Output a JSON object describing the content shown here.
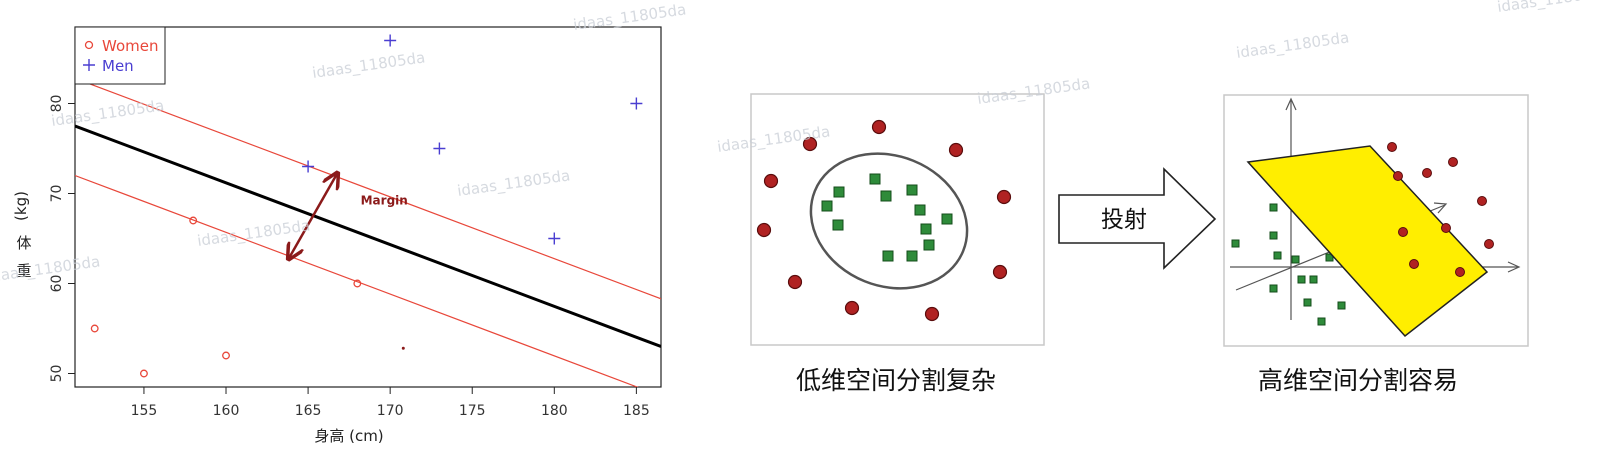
{
  "chart_data": [
    {
      "type": "scatter",
      "xlabel": "身高 (cm)",
      "ylabel": "体 (kg) 重",
      "xlim": [
        150.8,
        186.5
      ],
      "ylim": [
        48.5,
        88.5
      ],
      "xticks": [
        155,
        160,
        165,
        170,
        175,
        180,
        185
      ],
      "yticks": [
        50,
        60,
        70,
        80
      ],
      "legend_position": "top-left",
      "series": [
        {
          "name": "Women",
          "marker": "circle",
          "color": "#e8473a",
          "points": [
            {
              "x": 152,
              "y": 55
            },
            {
              "x": 155,
              "y": 50
            },
            {
              "x": 158,
              "y": 67
            },
            {
              "x": 160,
              "y": 52
            },
            {
              "x": 168,
              "y": 60
            }
          ]
        },
        {
          "name": "Men",
          "marker": "plus",
          "color": "#4a3ed1",
          "points": [
            {
              "x": 165,
              "y": 73
            },
            {
              "x": 170,
              "y": 87
            },
            {
              "x": 173,
              "y": 75
            },
            {
              "x": 180,
              "y": 65
            },
            {
              "x": 185,
              "y": 80
            }
          ]
        }
      ],
      "lines": [
        {
          "role": "decision-boundary",
          "color": "#000000",
          "x": [
            150.8,
            186.5
          ],
          "y": [
            77.5,
            53
          ]
        },
        {
          "role": "margin-upper",
          "color": "#e8473a",
          "x": [
            150.8,
            186.5
          ],
          "y": [
            82.8,
            58.3
          ]
        },
        {
          "role": "margin-lower",
          "color": "#e8473a",
          "x": [
            150.8,
            186.5
          ],
          "y": [
            72,
            47.5
          ]
        }
      ],
      "annotation": {
        "text": "Margin",
        "color": "#8b1a1a",
        "from": {
          "x": 163.8,
          "y": 62.7
        },
        "to": {
          "x": 166.8,
          "y": 72.3
        },
        "label_at": {
          "x": 168.2,
          "y": 68.8
        }
      },
      "stray_points": [
        {
          "x": 170.8,
          "y": 52.8
        }
      ]
    }
  ],
  "diagram": {
    "left_caption": "低维空间分割复杂",
    "right_caption": "高维空间分割容易",
    "arrow_label": "投射",
    "red_color": "#b02222",
    "green_color": "#2e8b3a",
    "plane_color": "#ffee00"
  },
  "watermark": "idaas_11805da"
}
